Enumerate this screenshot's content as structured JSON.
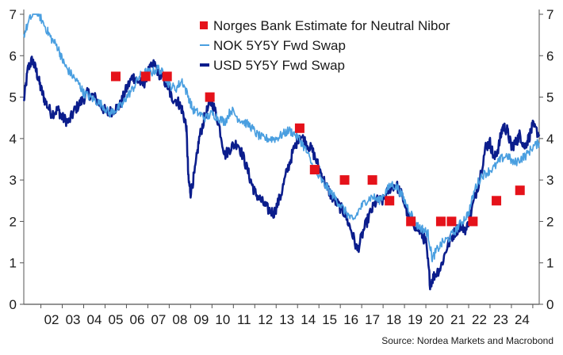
{
  "chart_data": {
    "type": "line",
    "title": "",
    "xlabel": "",
    "ylabel": "",
    "ylim": [
      0,
      7
    ],
    "xlim": [
      2001.2,
      2025.3
    ],
    "y_ticks": [
      0,
      1,
      2,
      3,
      4,
      5,
      6,
      7
    ],
    "x_tick_labels": [
      "02",
      "03",
      "04",
      "05",
      "06",
      "07",
      "08",
      "09",
      "10",
      "11",
      "12",
      "13",
      "14",
      "15",
      "16",
      "17",
      "18",
      "19",
      "20",
      "21",
      "22",
      "23",
      "24"
    ],
    "grid": false,
    "legend_position": "top-center",
    "source": "Source: Nordea Markets and Macrobond",
    "colors": {
      "nok": "#4a9fe0",
      "usd": "#0b1d8c",
      "markers": "#e5121a",
      "axis": "#555555"
    },
    "series": [
      {
        "name": "NOK 5Y5Y Fwd Swap",
        "kind": "line",
        "x": [
          2001.2,
          2001.5,
          2001.8,
          2002.0,
          2002.3,
          2002.5,
          2002.8,
          2003.0,
          2003.2,
          2003.5,
          2003.8,
          2004.0,
          2004.3,
          2004.6,
          2004.9,
          2005.2,
          2005.5,
          2005.8,
          2006.0,
          2006.3,
          2006.6,
          2006.9,
          2007.2,
          2007.5,
          2007.8,
          2008.0,
          2008.3,
          2008.6,
          2008.9,
          2009.1,
          2009.4,
          2009.7,
          2010.0,
          2010.3,
          2010.6,
          2010.9,
          2011.2,
          2011.5,
          2011.8,
          2012.1,
          2012.4,
          2012.7,
          2013.0,
          2013.3,
          2013.6,
          2013.9,
          2014.2,
          2014.5,
          2014.8,
          2015.1,
          2015.4,
          2015.7,
          2016.0,
          2016.3,
          2016.6,
          2016.9,
          2017.2,
          2017.5,
          2017.8,
          2018.1,
          2018.4,
          2018.7,
          2019.0,
          2019.3,
          2019.6,
          2019.9,
          2020.1,
          2020.3,
          2020.5,
          2020.8,
          2021.1,
          2021.4,
          2021.7,
          2022.0,
          2022.3,
          2022.6,
          2022.9,
          2023.2,
          2023.5,
          2023.8,
          2024.1,
          2024.4,
          2024.7,
          2025.0,
          2025.3
        ],
        "y": [
          6.5,
          6.9,
          7.1,
          6.9,
          6.6,
          6.4,
          6.2,
          5.9,
          5.7,
          5.5,
          5.3,
          5.1,
          5.0,
          4.9,
          4.8,
          4.6,
          4.7,
          4.8,
          5.0,
          5.2,
          5.5,
          5.6,
          5.6,
          5.7,
          5.5,
          5.3,
          5.2,
          5.4,
          5.0,
          4.7,
          4.6,
          4.5,
          4.6,
          4.5,
          4.4,
          4.7,
          4.5,
          4.4,
          4.3,
          4.1,
          4.0,
          4.0,
          4.0,
          4.1,
          4.2,
          4.1,
          3.9,
          3.6,
          3.2,
          3.0,
          2.8,
          2.6,
          2.4,
          2.2,
          2.0,
          2.3,
          2.5,
          2.6,
          2.5,
          2.7,
          2.9,
          2.8,
          2.5,
          2.2,
          1.9,
          1.8,
          1.7,
          1.1,
          1.3,
          1.5,
          1.6,
          1.8,
          2.0,
          2.2,
          2.8,
          3.1,
          3.2,
          3.3,
          3.5,
          3.6,
          3.4,
          3.5,
          3.6,
          3.8,
          3.9
        ]
      },
      {
        "name": "USD 5Y5Y Fwd Swap",
        "kind": "line",
        "x": [
          2001.2,
          2001.4,
          2001.6,
          2001.8,
          2002.0,
          2002.2,
          2002.5,
          2002.8,
          2003.0,
          2003.3,
          2003.6,
          2003.9,
          2004.2,
          2004.5,
          2004.8,
          2005.1,
          2005.4,
          2005.7,
          2006.0,
          2006.3,
          2006.5,
          2006.8,
          2007.0,
          2007.3,
          2007.6,
          2007.9,
          2008.1,
          2008.4,
          2008.6,
          2008.8,
          2008.9,
          2009.0,
          2009.2,
          2009.4,
          2009.7,
          2010.0,
          2010.3,
          2010.6,
          2010.9,
          2011.2,
          2011.5,
          2011.8,
          2012.0,
          2012.3,
          2012.6,
          2012.9,
          2013.2,
          2013.5,
          2013.8,
          2014.1,
          2014.4,
          2014.7,
          2015.0,
          2015.3,
          2015.6,
          2015.9,
          2016.2,
          2016.5,
          2016.8,
          2017.1,
          2017.4,
          2017.7,
          2018.0,
          2018.3,
          2018.6,
          2018.9,
          2019.2,
          2019.5,
          2019.8,
          2020.0,
          2020.2,
          2020.4,
          2020.7,
          2021.0,
          2021.3,
          2021.6,
          2021.9,
          2022.2,
          2022.5,
          2022.8,
          2023.0,
          2023.2,
          2023.4,
          2023.6,
          2023.8,
          2024.0,
          2024.2,
          2024.4,
          2024.6,
          2024.8,
          2025.0,
          2025.3
        ],
        "y": [
          4.9,
          5.7,
          5.9,
          5.6,
          5.2,
          4.9,
          4.6,
          4.7,
          4.5,
          4.4,
          4.7,
          4.9,
          5.1,
          5.0,
          4.8,
          4.6,
          4.7,
          4.8,
          5.2,
          5.5,
          5.4,
          5.3,
          5.6,
          5.8,
          5.5,
          5.3,
          5.0,
          4.9,
          4.7,
          4.3,
          3.0,
          2.7,
          3.2,
          4.0,
          4.6,
          4.9,
          4.4,
          3.6,
          3.8,
          3.9,
          3.5,
          3.0,
          2.7,
          2.5,
          2.3,
          2.2,
          2.6,
          3.2,
          3.7,
          4.1,
          3.9,
          3.7,
          3.3,
          2.9,
          2.6,
          2.4,
          2.2,
          1.8,
          1.3,
          1.8,
          2.2,
          2.5,
          2.5,
          2.8,
          2.9,
          2.6,
          2.1,
          1.9,
          1.7,
          1.5,
          0.5,
          0.7,
          0.9,
          1.4,
          1.7,
          1.9,
          1.8,
          2.4,
          3.0,
          3.8,
          3.9,
          3.5,
          3.8,
          4.3,
          4.2,
          3.8,
          3.9,
          4.1,
          3.8,
          4.0,
          4.3,
          4.1
        ]
      }
    ],
    "markers": {
      "name": "Norges Bank Estimate for Neutral Nibor",
      "kind": "scatter",
      "points": [
        {
          "x": 2005.5,
          "y": 5.5
        },
        {
          "x": 2006.9,
          "y": 5.5
        },
        {
          "x": 2007.9,
          "y": 5.5
        },
        {
          "x": 2009.9,
          "y": 5.0
        },
        {
          "x": 2014.1,
          "y": 4.25
        },
        {
          "x": 2014.8,
          "y": 3.25
        },
        {
          "x": 2016.2,
          "y": 3.0
        },
        {
          "x": 2017.5,
          "y": 3.0
        },
        {
          "x": 2018.3,
          "y": 2.5
        },
        {
          "x": 2019.3,
          "y": 2.0
        },
        {
          "x": 2020.7,
          "y": 2.0
        },
        {
          "x": 2021.2,
          "y": 2.0
        },
        {
          "x": 2022.2,
          "y": 2.0
        },
        {
          "x": 2023.3,
          "y": 2.5
        },
        {
          "x": 2024.4,
          "y": 2.75
        }
      ]
    }
  }
}
